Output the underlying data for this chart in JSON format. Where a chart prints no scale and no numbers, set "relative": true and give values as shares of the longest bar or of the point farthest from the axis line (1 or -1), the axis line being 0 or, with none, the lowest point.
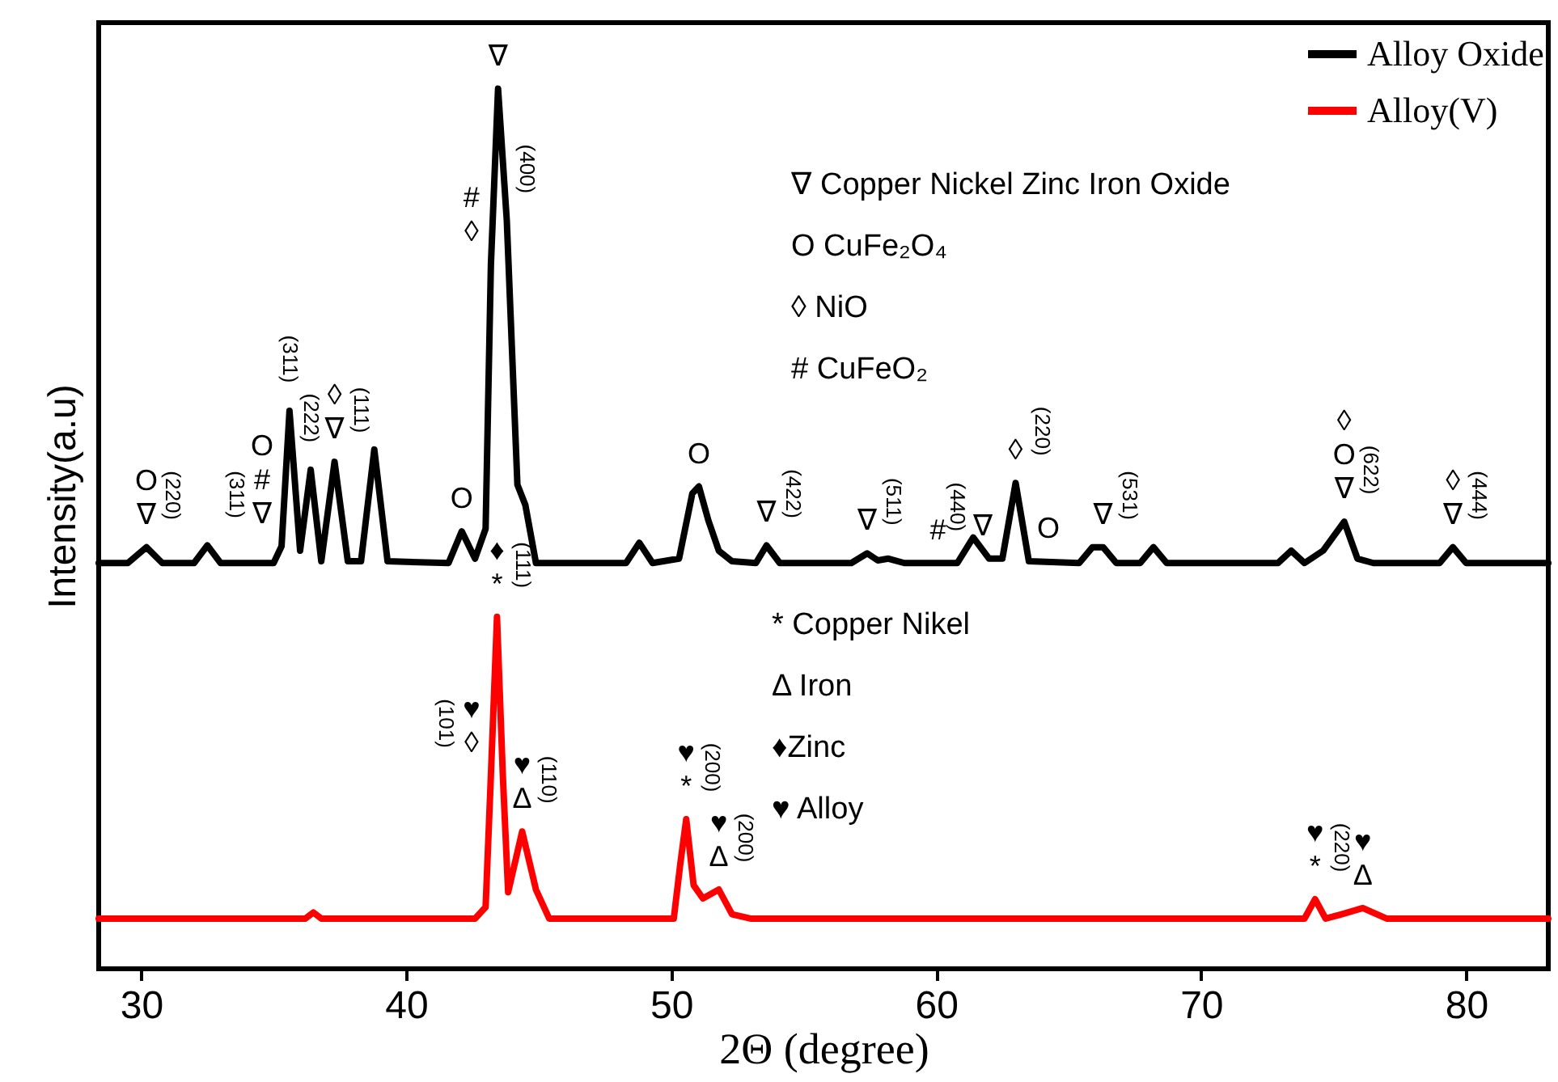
{
  "chart_data": {
    "type": "line",
    "relative": true,
    "xlabel": "2Θ (degree)",
    "ylabel": "Intensity(a.u)",
    "xlim": [
      28.4,
      83.1
    ],
    "xticks": [
      30,
      40,
      50,
      60,
      70,
      80
    ],
    "grid": false,
    "legend": "top right",
    "marker": "none",
    "line_style": "solid",
    "series": [
      {
        "name": "Alloy Oxide",
        "color": "#000000",
        "x": [
          28.4,
          29.5,
          30.2,
          30.8,
          32.0,
          32.5,
          33.0,
          35.0,
          35.3,
          35.6,
          36.0,
          36.4,
          36.8,
          37.3,
          37.8,
          38.3,
          38.8,
          39.3,
          41.6,
          42.1,
          42.6,
          43.0,
          43.2,
          43.47,
          43.8,
          44.2,
          44.5,
          44.9,
          48.3,
          48.8,
          49.3,
          50.3,
          50.8,
          51.05,
          51.4,
          51.8,
          52.3,
          53.2,
          53.6,
          54.1,
          56.8,
          57.4,
          57.8,
          58.2,
          58.8,
          60.8,
          61.4,
          62.0,
          62.5,
          63.0,
          63.5,
          65.4,
          65.9,
          66.3,
          66.8,
          67.7,
          68.2,
          68.7,
          72.9,
          73.4,
          73.9,
          74.6,
          75.4,
          75.9,
          76.5,
          79.0,
          79.5,
          80.0,
          83.1
        ],
        "values": [
          0.461,
          0.461,
          0.479,
          0.461,
          0.461,
          0.481,
          0.461,
          0.461,
          0.48,
          0.634,
          0.475,
          0.567,
          0.463,
          0.576,
          0.463,
          0.463,
          0.59,
          0.463,
          0.461,
          0.497,
          0.466,
          0.5,
          0.8,
          1,
          0.85,
          0.55,
          0.527,
          0.461,
          0.461,
          0.484,
          0.461,
          0.466,
          0.54,
          0.548,
          0.51,
          0.475,
          0.463,
          0.461,
          0.481,
          0.461,
          0.461,
          0.472,
          0.464,
          0.466,
          0.461,
          0.461,
          0.49,
          0.466,
          0.466,
          0.552,
          0.463,
          0.461,
          0.479,
          0.479,
          0.461,
          0.461,
          0.479,
          0.461,
          0.461,
          0.475,
          0.461,
          0.475,
          0.508,
          0.466,
          0.461,
          0.461,
          0.479,
          0.461,
          0.461
        ]
      },
      {
        "name": "Alloy(V)",
        "color": "#ff0000",
        "x": [
          28.4,
          36.2,
          36.5,
          36.8,
          42.6,
          43.0,
          43.2,
          43.43,
          43.65,
          43.85,
          44.38,
          44.9,
          45.4,
          50.1,
          50.35,
          50.57,
          50.85,
          51.2,
          51.8,
          52.3,
          53.0,
          73.9,
          74.3,
          74.7,
          75.3,
          76.1,
          77.0,
          83.1
        ],
        "values": [
          0.057,
          0.057,
          0.064,
          0.057,
          0.057,
          0.07,
          0.22,
          0.4,
          0.22,
          0.087,
          0.156,
          0.09,
          0.057,
          0.057,
          0.12,
          0.17,
          0.095,
          0.08,
          0.09,
          0.062,
          0.057,
          0.057,
          0.079,
          0.057,
          0.062,
          0.069,
          0.057,
          0.057
        ]
      }
    ],
    "annotations": [
      "∇ Copper Nickel Zinc Iron Oxide",
      "O CuFe₂O₄",
      "◊ NiO",
      "# CuFeO₂",
      "* Copper Nikel",
      "Δ Iron",
      "♦Zinc",
      "♥ Alloy",
      {
        "text": "∇",
        "x": 30.2,
        "y": 0.479
      },
      {
        "text": "O",
        "x": 30.2,
        "y": 0.479
      },
      {
        "text": "(220)",
        "x": 30.2,
        "y": 0.479
      },
      {
        "text": "∇",
        "x": 35.3,
        "y": 0.48
      },
      {
        "text": "#",
        "x": 35.3,
        "y": 0.48
      },
      {
        "text": "O",
        "x": 35.3,
        "y": 0.48
      },
      {
        "text": "(311)",
        "x": 35.3,
        "y": 0.48
      },
      {
        "text": "(222)",
        "x": 36.4,
        "y": 0.567
      },
      {
        "text": "(311)",
        "x": 35.6,
        "y": 0.634
      },
      {
        "text": "∇",
        "x": 37.3,
        "y": 0.576
      },
      {
        "text": "◊",
        "x": 37.3,
        "y": 0.576
      },
      {
        "text": "(111)",
        "x": 37.3,
        "y": 0.576
      },
      {
        "text": "O",
        "x": 42.1,
        "y": 0.497
      },
      {
        "text": "∇",
        "x": 43.47,
        "y": 1
      },
      {
        "text": "◊",
        "x": 43.2,
        "y": 0.8
      },
      {
        "text": "#",
        "x": 43.2,
        "y": 0.8
      },
      {
        "text": "(400)",
        "x": 43.8,
        "y": 0.85
      },
      {
        "text": "O",
        "x": 51.05,
        "y": 0.548
      },
      {
        "text": "∇",
        "x": 53.6,
        "y": 0.481
      },
      {
        "text": "(422)",
        "x": 53.6,
        "y": 0.481
      },
      {
        "text": "∇",
        "x": 57.4,
        "y": 0.472
      },
      {
        "text": "(511)",
        "x": 57.4,
        "y": 0.472
      },
      {
        "text": "#",
        "x": 60.8,
        "y": 0.461
      },
      {
        "text": "∇",
        "x": 62.5,
        "y": 0.466
      },
      {
        "text": "(440)",
        "x": 62.5,
        "y": 0.466
      },
      {
        "text": "◊",
        "x": 63.0,
        "y": 0.552
      },
      {
        "text": "(220)",
        "x": 63.0,
        "y": 0.552
      },
      {
        "text": "O",
        "x": 63.5,
        "y": 0.463
      },
      {
        "text": "∇",
        "x": 66.3,
        "y": 0.479
      },
      {
        "text": "(531)",
        "x": 66.3,
        "y": 0.479
      },
      {
        "text": "∇",
        "x": 75.4,
        "y": 0.508
      },
      {
        "text": "O",
        "x": 75.4,
        "y": 0.508
      },
      {
        "text": "◊",
        "x": 75.4,
        "y": 0.508
      },
      {
        "text": "(622)",
        "x": 75.4,
        "y": 0.508
      },
      {
        "text": "∇",
        "x": 79.5,
        "y": 0.479
      },
      {
        "text": "◊",
        "x": 79.5,
        "y": 0.479
      },
      {
        "text": "(444)",
        "x": 79.5,
        "y": 0.479
      },
      {
        "text": "◊",
        "x": 43.2,
        "y": 0.22
      },
      {
        "text": "(101)",
        "x": 43.2,
        "y": 0.22
      },
      {
        "text": "♥",
        "x": 43.2,
        "y": 0.22
      },
      {
        "text": "*",
        "x": 43.43,
        "y": 0.4
      },
      {
        "text": "♦",
        "x": 43.43,
        "y": 0.4
      },
      {
        "text": "Δ",
        "x": 44.38,
        "y": 0.156
      },
      {
        "text": "(110)",
        "x": 44.38,
        "y": 0.156
      },
      {
        "text": "♥",
        "x": 44.38,
        "y": 0.156
      },
      {
        "text": "(111)",
        "x": 43.43,
        "y": 0.4
      },
      {
        "text": "*",
        "x": 50.57,
        "y": 0.17
      },
      {
        "text": "♥",
        "x": 50.57,
        "y": 0.17
      },
      {
        "text": "(200)",
        "x": 50.57,
        "y": 0.17
      },
      {
        "text": "Δ",
        "x": 51.8,
        "y": 0.09
      },
      {
        "text": "♥",
        "x": 51.8,
        "y": 0.09
      },
      {
        "text": "(200)",
        "x": 51.8,
        "y": 0.09
      },
      {
        "text": "*",
        "x": 74.3,
        "y": 0.079
      },
      {
        "text": "♥",
        "x": 74.3,
        "y": 0.079
      },
      {
        "text": "(220)",
        "x": 74.3,
        "y": 0.079
      },
      {
        "text": "Δ",
        "x": 76.1,
        "y": 0.069
      },
      {
        "text": "♥",
        "x": 76.1,
        "y": 0.069
      }
    ]
  }
}
